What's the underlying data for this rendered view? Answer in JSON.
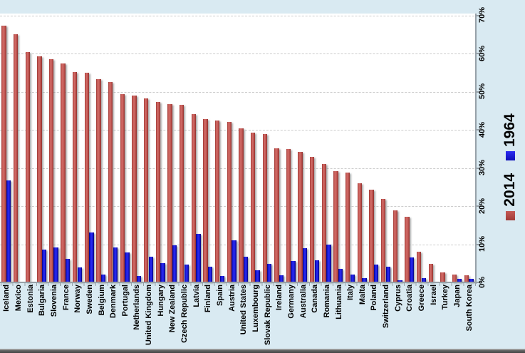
{
  "chart_data": {
    "type": "bar",
    "title": "",
    "xlabel": "",
    "ylabel": "",
    "ylim": [
      0,
      70
    ],
    "y_ticks": [
      "0%",
      "10%",
      "20%",
      "30%",
      "40%",
      "50%",
      "60%",
      "70%"
    ],
    "grid": "horizontal-dashed",
    "legend_position": "right-rotated",
    "categories": [
      "Iceland",
      "Mexico",
      "Estonia",
      "Bulgaria",
      "Slovenia",
      "France",
      "Norway",
      "Sweden",
      "Belgium",
      "Denmark",
      "Portugal",
      "Netherlands",
      "United Kingdom",
      "Hungary",
      "New Zealand",
      "Czech Republic",
      "Latvia",
      "Finland",
      "Spain",
      "Austria",
      "United States",
      "Luxembourg",
      "Slovak Republic",
      "Ireland",
      "Germany",
      "Australia",
      "Canada",
      "Romania",
      "Lithuania",
      "Italy",
      "Malta",
      "Poland",
      "Switzerland",
      "Cyprus",
      "Croatia",
      "Greece",
      "Israel",
      "Turkey",
      "Japan",
      "South Korea"
    ],
    "series": [
      {
        "name": "2014",
        "color": "#bf4b47",
        "values": [
          67.3,
          65.1,
          60.3,
          59.2,
          58.6,
          57.3,
          55.2,
          54.9,
          53.3,
          52.6,
          49.4,
          49.0,
          48.2,
          47.3,
          46.8,
          46.6,
          44.1,
          42.9,
          42.5,
          42.0,
          40.3,
          39.2,
          38.9,
          35.1,
          35.0,
          34.2,
          33.0,
          31.1,
          29.2,
          28.8,
          25.9,
          24.3,
          21.8,
          18.8,
          17.2,
          8.0,
          4.8,
          2.6,
          2.1,
          1.9
        ]
      },
      {
        "name": "1964",
        "color": "#1a1ae6",
        "values": [
          26.8,
          0,
          0,
          8.6,
          9.1,
          6.2,
          3.9,
          13.0,
          2.1,
          9.1,
          7.8,
          1.6,
          6.8,
          5.1,
          9.7,
          4.7,
          12.7,
          4.2,
          1.6,
          11.1,
          6.8,
          3.1,
          4.9,
          1.8,
          5.6,
          8.9,
          5.8,
          9.9,
          3.5,
          2.0,
          1.1,
          4.7,
          4.2,
          0.5,
          6.6,
          1.1,
          0,
          0,
          1.0,
          0.9
        ]
      }
    ]
  },
  "legend": {
    "items": [
      {
        "label": "2014",
        "color_css": "linear-gradient(90deg,#a03b38,#c55a55)",
        "color": "#bf4b47"
      },
      {
        "label": "1964",
        "color_css": "linear-gradient(90deg,#0f0fb8,#2b2bf2)",
        "color": "#1a1ae6"
      }
    ]
  },
  "colors": {
    "background": "#d9eaf2",
    "plot_background": "#ffffff",
    "gridline": "#cccccc",
    "axis": "#97a1a8",
    "bar_2014": "#bf4b47",
    "bar_1964": "#1a1ae6",
    "text": "#000000",
    "bottom_frame": "#4f4f4f"
  }
}
